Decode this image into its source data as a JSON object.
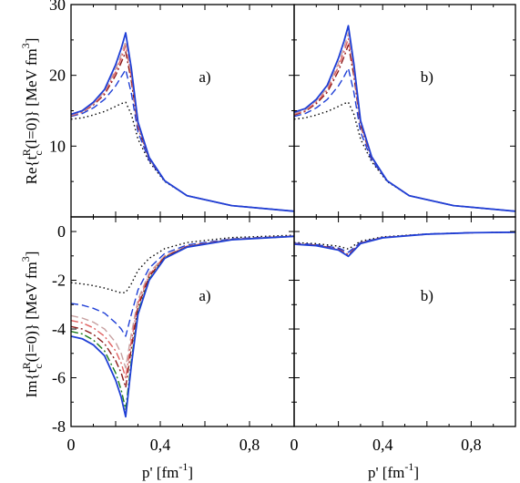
{
  "chart_data": {
    "type": "line",
    "xlabel": "p' [fm⁻¹]",
    "x_ticks": [
      "0",
      "0,4",
      "0,8"
    ],
    "xlim": [
      0,
      1.0
    ],
    "rows": [
      {
        "ylabel": "Re{tcR(l=0)} [MeV fm3]",
        "ylim": [
          0,
          30
        ],
        "y_ticks": [
          {
            "value": 10,
            "label": "10"
          },
          {
            "value": 20,
            "label": "20"
          },
          {
            "value": 30,
            "label": "30"
          }
        ]
      },
      {
        "ylabel": "Im{tcR(l=0)} [MeV fm3]",
        "ylim": [
          -8,
          0.6
        ],
        "y_ticks": [
          {
            "value": -8,
            "label": "-8"
          },
          {
            "value": -6,
            "label": "-6"
          },
          {
            "value": -4,
            "label": "-4"
          },
          {
            "value": -2,
            "label": "-2"
          },
          {
            "value": 0,
            "label": "0"
          }
        ]
      }
    ],
    "panels": [
      {
        "id": "re-a",
        "row": 0,
        "col": 0,
        "tag": "a)",
        "series": [
          {
            "style": "dotted",
            "color": "#000000",
            "x": [
              0,
              0.05,
              0.1,
              0.15,
              0.2,
              0.225,
              0.245,
              0.27,
              0.3,
              0.35,
              0.42,
              0.52,
              0.72,
              1.0
            ],
            "y": [
              13.8,
              14.0,
              14.4,
              14.9,
              15.6,
              16.0,
              16.2,
              14.5,
              11.0,
              7.8,
              5.0,
              3.0,
              1.6,
              0.8
            ]
          },
          {
            "style": "dashed",
            "color": "#1f3fd6",
            "x": [
              0,
              0.05,
              0.1,
              0.15,
              0.2,
              0.225,
              0.245,
              0.27,
              0.3,
              0.35,
              0.42,
              0.52,
              0.72,
              1.0
            ],
            "y": [
              14.2,
              14.6,
              15.4,
              16.6,
              18.5,
              19.8,
              20.8,
              17.5,
              12.0,
              8.0,
              5.1,
              3.0,
              1.6,
              0.8
            ]
          },
          {
            "style": "dashdot",
            "color": "#8b1a1a",
            "x": [
              0,
              0.05,
              0.1,
              0.15,
              0.2,
              0.225,
              0.245,
              0.27,
              0.3,
              0.35,
              0.42,
              0.52,
              0.72,
              1.0
            ],
            "y": [
              14.3,
              14.8,
              15.8,
              17.3,
              20.0,
              21.8,
              23.3,
              19.2,
              12.7,
              8.2,
              5.1,
              3.0,
              1.6,
              0.8
            ]
          },
          {
            "style": "dashdot",
            "color": "#e06060",
            "x": [
              0,
              0.05,
              0.1,
              0.15,
              0.2,
              0.225,
              0.245,
              0.27,
              0.3,
              0.35,
              0.42,
              0.52,
              0.72,
              1.0
            ],
            "y": [
              14.3,
              14.8,
              15.9,
              17.5,
              20.5,
              22.4,
              24.2,
              19.8,
              12.9,
              8.3,
              5.1,
              3.0,
              1.6,
              0.8
            ]
          },
          {
            "style": "dashed",
            "color": "#c8a0a0",
            "x": [
              0,
              0.05,
              0.1,
              0.15,
              0.2,
              0.225,
              0.245,
              0.27,
              0.3,
              0.35,
              0.42,
              0.52,
              0.72,
              1.0
            ],
            "y": [
              14.4,
              14.9,
              16.0,
              17.7,
              20.9,
              22.9,
              24.8,
              20.3,
              13.1,
              8.3,
              5.1,
              3.0,
              1.6,
              0.8
            ]
          },
          {
            "style": "solid",
            "color": "#1f3fd6",
            "x": [
              0,
              0.05,
              0.1,
              0.15,
              0.2,
              0.225,
              0.245,
              0.27,
              0.3,
              0.35,
              0.42,
              0.52,
              0.72,
              1.0
            ],
            "y": [
              14.5,
              15.0,
              16.2,
              18.0,
              21.5,
              23.8,
              26.0,
              21.0,
              13.4,
              8.4,
              5.1,
              3.0,
              1.6,
              0.8
            ]
          }
        ]
      },
      {
        "id": "re-b",
        "row": 0,
        "col": 1,
        "tag": "b)",
        "series": [
          {
            "style": "dotted",
            "color": "#000000",
            "x": [
              0,
              0.05,
              0.1,
              0.15,
              0.2,
              0.225,
              0.245,
              0.27,
              0.3,
              0.35,
              0.42,
              0.52,
              0.72,
              1.0
            ],
            "y": [
              13.8,
              14.0,
              14.4,
              14.9,
              15.6,
              16.0,
              16.2,
              14.5,
              11.0,
              7.8,
              5.0,
              3.0,
              1.6,
              0.8
            ]
          },
          {
            "style": "dashed",
            "color": "#1f3fd6",
            "x": [
              0,
              0.05,
              0.1,
              0.15,
              0.2,
              0.225,
              0.245,
              0.27,
              0.3,
              0.35,
              0.42,
              0.52,
              0.72,
              1.0
            ],
            "y": [
              14.2,
              14.6,
              15.4,
              16.6,
              18.5,
              19.8,
              21.0,
              17.6,
              12.0,
              8.0,
              5.1,
              3.0,
              1.6,
              0.8
            ]
          },
          {
            "style": "dashdot",
            "color": "#8b1a1a",
            "x": [
              0,
              0.05,
              0.1,
              0.15,
              0.2,
              0.225,
              0.245,
              0.27,
              0.3,
              0.35,
              0.42,
              0.52,
              0.72,
              1.0
            ],
            "y": [
              14.4,
              14.9,
              16.0,
              17.6,
              20.6,
              22.6,
              24.3,
              19.9,
              12.9,
              8.3,
              5.1,
              3.0,
              1.6,
              0.8
            ]
          },
          {
            "style": "dashdot",
            "color": "#e06060",
            "x": [
              0,
              0.05,
              0.1,
              0.15,
              0.2,
              0.225,
              0.245,
              0.27,
              0.3,
              0.35,
              0.42,
              0.52,
              0.72,
              1.0
            ],
            "y": [
              14.5,
              15.0,
              16.2,
              17.9,
              21.2,
              23.3,
              25.2,
              20.5,
              13.2,
              8.4,
              5.1,
              3.0,
              1.6,
              0.8
            ]
          },
          {
            "style": "dashed",
            "color": "#c8a0a0",
            "x": [
              0,
              0.05,
              0.1,
              0.15,
              0.2,
              0.225,
              0.245,
              0.27,
              0.3,
              0.35,
              0.42,
              0.52,
              0.72,
              1.0
            ],
            "y": [
              14.6,
              15.1,
              16.4,
              18.2,
              21.7,
              23.9,
              26.0,
              21.0,
              13.4,
              8.4,
              5.1,
              3.0,
              1.6,
              0.8
            ]
          },
          {
            "style": "solid",
            "color": "#1f3fd6",
            "x": [
              0,
              0.05,
              0.1,
              0.15,
              0.2,
              0.225,
              0.245,
              0.27,
              0.3,
              0.35,
              0.42,
              0.52,
              0.72,
              1.0
            ],
            "y": [
              14.8,
              15.3,
              16.6,
              18.6,
              22.4,
              24.8,
              27.0,
              21.6,
              13.6,
              8.5,
              5.1,
              3.0,
              1.6,
              0.8
            ]
          }
        ]
      },
      {
        "id": "im-a",
        "row": 1,
        "col": 1,
        "tag": "a)",
        "col_index": 0,
        "series": [
          {
            "style": "dotted",
            "color": "#000000",
            "x": [
              0,
              0.05,
              0.1,
              0.15,
              0.2,
              0.225,
              0.245,
              0.27,
              0.3,
              0.35,
              0.42,
              0.52,
              0.72,
              1.0
            ],
            "y": [
              -2.1,
              -2.15,
              -2.22,
              -2.32,
              -2.45,
              -2.52,
              -2.5,
              -2.15,
              -1.6,
              -1.1,
              -0.7,
              -0.45,
              -0.25,
              -0.15
            ]
          },
          {
            "style": "dashed",
            "color": "#1f3fd6",
            "x": [
              0,
              0.05,
              0.1,
              0.15,
              0.2,
              0.225,
              0.245,
              0.27,
              0.3,
              0.35,
              0.42,
              0.52,
              0.72,
              1.0
            ],
            "y": [
              -2.95,
              -3.02,
              -3.15,
              -3.35,
              -3.75,
              -4.0,
              -4.3,
              -3.4,
              -2.4,
              -1.5,
              -0.9,
              -0.55,
              -0.3,
              -0.18
            ]
          },
          {
            "style": "dashed",
            "color": "#c8a0a0",
            "x": [
              0,
              0.05,
              0.1,
              0.15,
              0.2,
              0.225,
              0.245,
              0.27,
              0.3,
              0.35,
              0.42,
              0.52,
              0.72,
              1.0
            ],
            "y": [
              -3.45,
              -3.55,
              -3.72,
              -4.0,
              -4.55,
              -5.0,
              -5.6,
              -4.2,
              -2.8,
              -1.7,
              -1.0,
              -0.6,
              -0.32,
              -0.19
            ]
          },
          {
            "style": "dashdot",
            "color": "#e06060",
            "x": [
              0,
              0.05,
              0.1,
              0.15,
              0.2,
              0.225,
              0.245,
              0.27,
              0.3,
              0.35,
              0.42,
              0.52,
              0.72,
              1.0
            ],
            "y": [
              -3.65,
              -3.75,
              -3.95,
              -4.3,
              -4.9,
              -5.4,
              -6.0,
              -4.5,
              -2.95,
              -1.78,
              -1.02,
              -0.6,
              -0.32,
              -0.19
            ]
          },
          {
            "style": "dashdot",
            "color": "#8b1a1a",
            "x": [
              0,
              0.05,
              0.1,
              0.15,
              0.2,
              0.225,
              0.245,
              0.27,
              0.3,
              0.35,
              0.42,
              0.52,
              0.72,
              1.0
            ],
            "y": [
              -3.9,
              -4.0,
              -4.22,
              -4.6,
              -5.3,
              -5.8,
              -6.4,
              -4.8,
              -3.1,
              -1.85,
              -1.05,
              -0.62,
              -0.33,
              -0.2
            ]
          },
          {
            "style": "dashdot",
            "color": "#1a7a1a",
            "x": [
              0,
              0.05,
              0.1,
              0.15,
              0.2,
              0.225,
              0.245,
              0.27,
              0.3,
              0.35,
              0.42,
              0.52,
              0.72,
              1.0
            ],
            "y": [
              -4.1,
              -4.2,
              -4.45,
              -4.9,
              -5.8,
              -6.5,
              -7.3,
              -5.3,
              -3.3,
              -1.95,
              -1.08,
              -0.63,
              -0.33,
              -0.2
            ]
          },
          {
            "style": "solid",
            "color": "#1f3fd6",
            "x": [
              0,
              0.05,
              0.1,
              0.15,
              0.2,
              0.225,
              0.245,
              0.27,
              0.3,
              0.35,
              0.42,
              0.52,
              0.72,
              1.0
            ],
            "y": [
              -4.3,
              -4.4,
              -4.65,
              -5.1,
              -6.1,
              -6.8,
              -7.6,
              -5.5,
              -3.4,
              -2.0,
              -1.1,
              -0.64,
              -0.34,
              -0.2
            ]
          }
        ]
      },
      {
        "id": "im-b",
        "row": 1,
        "col": 1,
        "tag": "b)",
        "series": [
          {
            "style": "dotted",
            "color": "#000000",
            "x": [
              0,
              0.1,
              0.2,
              0.245,
              0.3,
              0.4,
              0.6,
              0.8,
              1.0
            ],
            "y": [
              -0.45,
              -0.5,
              -0.6,
              -0.72,
              -0.4,
              -0.22,
              -0.1,
              -0.05,
              -0.03
            ]
          },
          {
            "style": "dashed",
            "color": "#1f3fd6",
            "x": [
              0,
              0.1,
              0.2,
              0.245,
              0.3,
              0.4,
              0.6,
              0.8,
              1.0
            ],
            "y": [
              -0.48,
              -0.54,
              -0.68,
              -0.85,
              -0.45,
              -0.24,
              -0.1,
              -0.05,
              -0.03
            ]
          },
          {
            "style": "dashdot",
            "color": "#8b1a1a",
            "x": [
              0,
              0.1,
              0.2,
              0.245,
              0.3,
              0.4,
              0.6,
              0.8,
              1.0
            ],
            "y": [
              -0.5,
              -0.56,
              -0.72,
              -0.95,
              -0.47,
              -0.25,
              -0.11,
              -0.05,
              -0.03
            ]
          },
          {
            "style": "dashdot",
            "color": "#e06060",
            "x": [
              0,
              0.1,
              0.2,
              0.245,
              0.3,
              0.4,
              0.6,
              0.8,
              1.0
            ],
            "y": [
              -0.51,
              -0.57,
              -0.74,
              -0.98,
              -0.48,
              -0.25,
              -0.11,
              -0.05,
              -0.03
            ]
          },
          {
            "style": "solid",
            "color": "#1f3fd6",
            "x": [
              0,
              0.1,
              0.2,
              0.245,
              0.3,
              0.4,
              0.6,
              0.8,
              1.0
            ],
            "y": [
              -0.52,
              -0.58,
              -0.76,
              -1.02,
              -0.49,
              -0.26,
              -0.11,
              -0.05,
              -0.03
            ]
          }
        ]
      }
    ]
  }
}
